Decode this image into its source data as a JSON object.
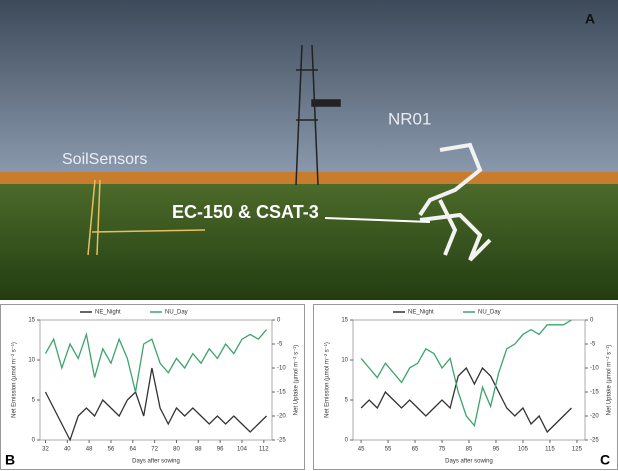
{
  "photo": {
    "panel_label": "A",
    "labels": [
      "NR01",
      "SoilSensors",
      "EC-150 & CSAT-3"
    ]
  },
  "chart_data": [
    {
      "type": "line",
      "panel_label": "B",
      "x_label": "Days after sowing",
      "y_label": "Net Emission (µmol m⁻² s⁻¹)",
      "y2_label": "Net Uptake (µmol m⁻² s⁻¹)",
      "x": [
        32,
        35,
        38,
        41,
        44,
        47,
        50,
        53,
        56,
        59,
        62,
        65,
        68,
        71,
        74,
        77,
        80,
        83,
        86,
        89,
        92,
        95,
        98,
        101,
        104,
        107,
        110,
        113
      ],
      "xlim": [
        30,
        115
      ],
      "xticks": [
        32,
        40,
        48,
        56,
        64,
        72,
        80,
        88,
        96,
        104,
        112
      ],
      "ylim": [
        0,
        15
      ],
      "yticks": [
        0,
        5,
        10,
        15
      ],
      "y2lim": [
        -25,
        0
      ],
      "y2ticks": [
        0,
        -5,
        -10,
        -15,
        -20,
        -25
      ],
      "series": [
        {
          "name": "NE_Night",
          "color": "#333333",
          "values": [
            6,
            4,
            2,
            0,
            3,
            4,
            3,
            5,
            4,
            3,
            5,
            6,
            3,
            9,
            4,
            2,
            4,
            3,
            4,
            3,
            2,
            3,
            2,
            3,
            2,
            1,
            2,
            3
          ]
        },
        {
          "name": "NU_Day",
          "color": "#3aa56b",
          "axis": "y2",
          "values": [
            -7,
            -4,
            -10,
            -5,
            -8,
            -3,
            -12,
            -6,
            -9,
            -4,
            -8,
            -15,
            -5,
            -4,
            -9,
            -11,
            -8,
            -10,
            -7,
            -9,
            -6,
            -8,
            -5,
            -7,
            -4,
            -3,
            -4,
            -2
          ]
        }
      ]
    },
    {
      "type": "line",
      "panel_label": "C",
      "x_label": "Days after sowing",
      "y_label": "Net Emission (µmol m⁻² s⁻¹)",
      "y2_label": "Net Uptake (µmol m⁻² s⁻¹)",
      "x": [
        45,
        48,
        51,
        54,
        57,
        60,
        63,
        66,
        69,
        72,
        75,
        78,
        81,
        84,
        87,
        90,
        93,
        96,
        99,
        102,
        105,
        108,
        111,
        114,
        117,
        120,
        123
      ],
      "xlim": [
        42,
        128
      ],
      "xticks": [
        45,
        55,
        65,
        75,
        85,
        95,
        105,
        115,
        125
      ],
      "ylim": [
        0,
        15
      ],
      "yticks": [
        0,
        5,
        10,
        15
      ],
      "y2lim": [
        -25,
        0
      ],
      "y2ticks": [
        0,
        -5,
        -10,
        -15,
        -20,
        -25
      ],
      "series": [
        {
          "name": "NE_Night",
          "color": "#333333",
          "values": [
            4,
            5,
            4,
            6,
            5,
            4,
            5,
            4,
            3,
            4,
            5,
            4,
            8,
            9,
            7,
            9,
            8,
            6,
            4,
            3,
            4,
            2,
            3,
            1,
            2,
            3,
            4
          ]
        },
        {
          "name": "NU_Day",
          "color": "#3aa56b",
          "axis": "y2",
          "values": [
            -8,
            -10,
            -12,
            -9,
            -11,
            -13,
            -10,
            -9,
            -6,
            -7,
            -10,
            -8,
            -15,
            -20,
            -22,
            -14,
            -18,
            -11,
            -6,
            -5,
            -3,
            -2,
            -3,
            -1,
            -1,
            -1,
            0
          ]
        }
      ]
    }
  ]
}
